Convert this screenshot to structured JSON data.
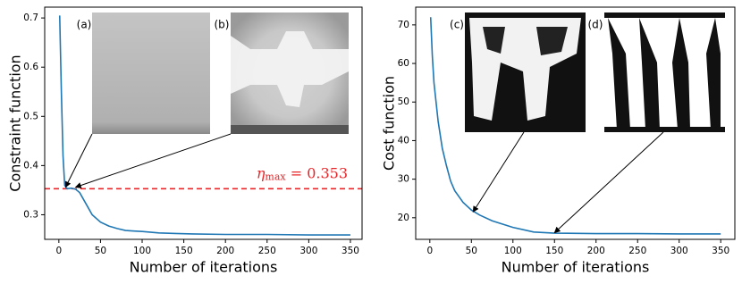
{
  "chart_data": [
    {
      "type": "line",
      "x_label": "Number of iterations",
      "y_label": "Constraint function",
      "x": [
        1,
        3,
        5,
        7,
        10,
        15,
        20,
        25,
        30,
        35,
        40,
        50,
        60,
        70,
        80,
        90,
        100,
        120,
        140,
        160,
        200,
        250,
        300,
        350
      ],
      "values": [
        0.705,
        0.55,
        0.42,
        0.36,
        0.353,
        0.354,
        0.352,
        0.345,
        0.33,
        0.315,
        0.3,
        0.285,
        0.277,
        0.272,
        0.268,
        0.267,
        0.266,
        0.263,
        0.262,
        0.261,
        0.26,
        0.26,
        0.259,
        0.259
      ],
      "color": "#1f77b4",
      "grid": false,
      "xlim": [
        -17,
        364
      ],
      "ylim": [
        0.25,
        0.722
      ],
      "xticks": [
        0,
        50,
        100,
        150,
        200,
        250,
        300,
        350
      ],
      "yticks": [
        0.3,
        0.4,
        0.5,
        0.6,
        0.7
      ],
      "threshold": {
        "value": 0.353,
        "color": "#e8262a",
        "label_symbol": "η",
        "label_sub": "max",
        "label_text": " = 0.353"
      },
      "annotations": [
        {
          "label": "(a)",
          "x": 8,
          "y": 0.356
        },
        {
          "label": "(b)",
          "x": 20,
          "y": 0.356
        }
      ]
    },
    {
      "type": "line",
      "x_label": "Number of iterations",
      "y_label": "Cost function",
      "x": [
        1,
        3,
        5,
        8,
        10,
        15,
        20,
        25,
        30,
        40,
        50,
        60,
        75,
        100,
        125,
        150,
        200,
        250,
        300,
        350
      ],
      "values": [
        72,
        62,
        55,
        49,
        45,
        38,
        33.5,
        29.5,
        27,
        24,
        22,
        20.7,
        19.2,
        17.5,
        16.3,
        16,
        15.9,
        15.9,
        15.8,
        15.8
      ],
      "color": "#1f77b4",
      "grid": false,
      "xlim": [
        -17,
        367
      ],
      "ylim": [
        14.4,
        74.6
      ],
      "xticks": [
        0,
        50,
        100,
        150,
        200,
        250,
        300,
        350
      ],
      "yticks": [
        20,
        30,
        40,
        50,
        60,
        70
      ],
      "annotations": [
        {
          "label": "(c)",
          "x": 52,
          "y": 21.5
        },
        {
          "label": "(d)",
          "x": 150,
          "y": 16.1
        }
      ]
    }
  ]
}
